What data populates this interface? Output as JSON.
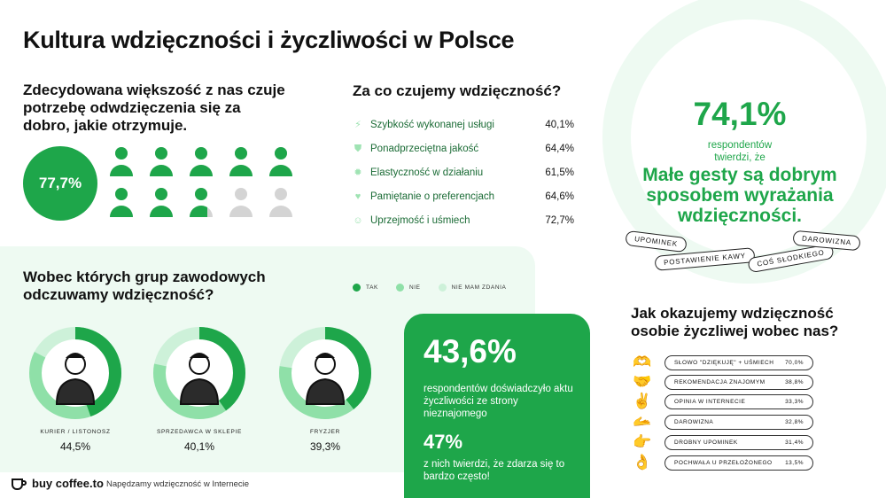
{
  "title": "Kultura wdzięczności i życzliwości w Polsce",
  "intro": {
    "heading": "Zdecydowana większość z nas czuje potrzebę odwdzięczenia się za dobro, jakie otrzymuje.",
    "percent_label": "77,7%"
  },
  "gratitude": {
    "heading": "Za co czujemy wdzięczność?",
    "items": [
      {
        "icon": "lightning-icon",
        "label": "Szybkość wykonanej usługi",
        "value": "40,1%"
      },
      {
        "icon": "shield-check-icon",
        "label": "Ponadprzeciętna jakość",
        "value": "64,4%"
      },
      {
        "icon": "gear-icon",
        "label": "Elastyczność w działaniu",
        "value": "61,5%"
      },
      {
        "icon": "heart-icon",
        "label": "Pamiętanie o preferencjach",
        "value": "64,6%"
      },
      {
        "icon": "smile-icon",
        "label": "Uprzejmość i uśmiech",
        "value": "72,7%"
      }
    ]
  },
  "right_panel": {
    "percent": "74,1%",
    "respondents": "respondentów twierdzi, że",
    "quote": "Małe gesty są dobrym sposobem wyrażania wdzięczności.",
    "tags": [
      "UPOMINEK",
      "POSTAWIENIE KAWY",
      "COŚ SŁODKIEGO",
      "DAROWIZNA"
    ]
  },
  "how": {
    "heading": "Jak okazujemy wdzięczność osobie życzliwej wobec nas?",
    "items": [
      {
        "emoji": "🫶",
        "label": "SŁOWO \"DZIĘKUJĘ\" + UŚMIECH",
        "value": "70,0%"
      },
      {
        "emoji": "🤝",
        "label": "REKOMENDACJA ZNAJOMYM",
        "value": "38,8%"
      },
      {
        "emoji": "✌️",
        "label": "OPINIA W INTERNECIE",
        "value": "33,3%"
      },
      {
        "emoji": "🫴",
        "label": "DAROWIZNA",
        "value": "32,8%"
      },
      {
        "emoji": "👉",
        "label": "DROBNY UPOMINEK",
        "value": "31,4%"
      },
      {
        "emoji": "👌",
        "label": "POCHWAŁA U PRZEŁOŻONEGO",
        "value": "13,5%"
      }
    ]
  },
  "groups": {
    "heading": "Wobec których grup zawodowych odczuwamy wdzięczność?",
    "legend": [
      "TAK",
      "NIE",
      "NIE MAM ZDANIA"
    ]
  },
  "card": {
    "percent": "43,6%",
    "text": "respondentów doświadczyło aktu życzliwości ze strony nieznajomego",
    "percent2": "47%",
    "text2": "z nich twierdzi, że zdarza się to bardzo często!"
  },
  "footer": {
    "logo": "buy coffee.to",
    "tagline": "Napędzamy wdzięczność w Internecie"
  },
  "colors": {
    "green": "#1ea64a",
    "light_green": "#9fe3b3",
    "pale_green": "#d9f5e2",
    "grey": "#d4d4d4"
  },
  "chart_data": [
    {
      "type": "pictogram",
      "title": "",
      "total_icons": 10,
      "value_percent": 77.7,
      "label": "77,7%"
    },
    {
      "type": "table",
      "title": "Za co czujemy wdzięczność?",
      "categories": [
        "Szybkość wykonanej usługi",
        "Ponadprzeciętna jakość",
        "Elastyczność w działaniu",
        "Pamiętanie o preferencjach",
        "Uprzejmość i uśmiech"
      ],
      "values": [
        40.1,
        64.4,
        61.5,
        64.6,
        72.7
      ]
    },
    {
      "type": "pie",
      "title": "Wobec których grup zawodowych odczuwamy wdzięczność?",
      "legend": [
        "TAK",
        "NIE",
        "NIE MAM ZDANIA"
      ],
      "categories": [
        "KURIER / LISTONOSZ",
        "SPRZEDAWCA W SKLEPIE",
        "FRYZJER"
      ],
      "values": [
        44.5,
        40.1,
        39.3
      ],
      "labels": [
        "44,5%",
        "40,1%",
        "39,3%"
      ]
    },
    {
      "type": "table",
      "title": "Jak okazujemy wdzięczność osobie życzliwej wobec nas?",
      "categories": [
        "SŁOWO \"DZIĘKUJĘ\" + UŚMIECH",
        "REKOMENDACJA ZNAJOMYM",
        "OPINIA W INTERNECIE",
        "DAROWIZNA",
        "DROBNY UPOMINEK",
        "POCHWAŁA U PRZEŁOŻONEGO"
      ],
      "values": [
        70.0,
        38.8,
        33.3,
        32.8,
        31.4,
        13.5
      ]
    }
  ]
}
